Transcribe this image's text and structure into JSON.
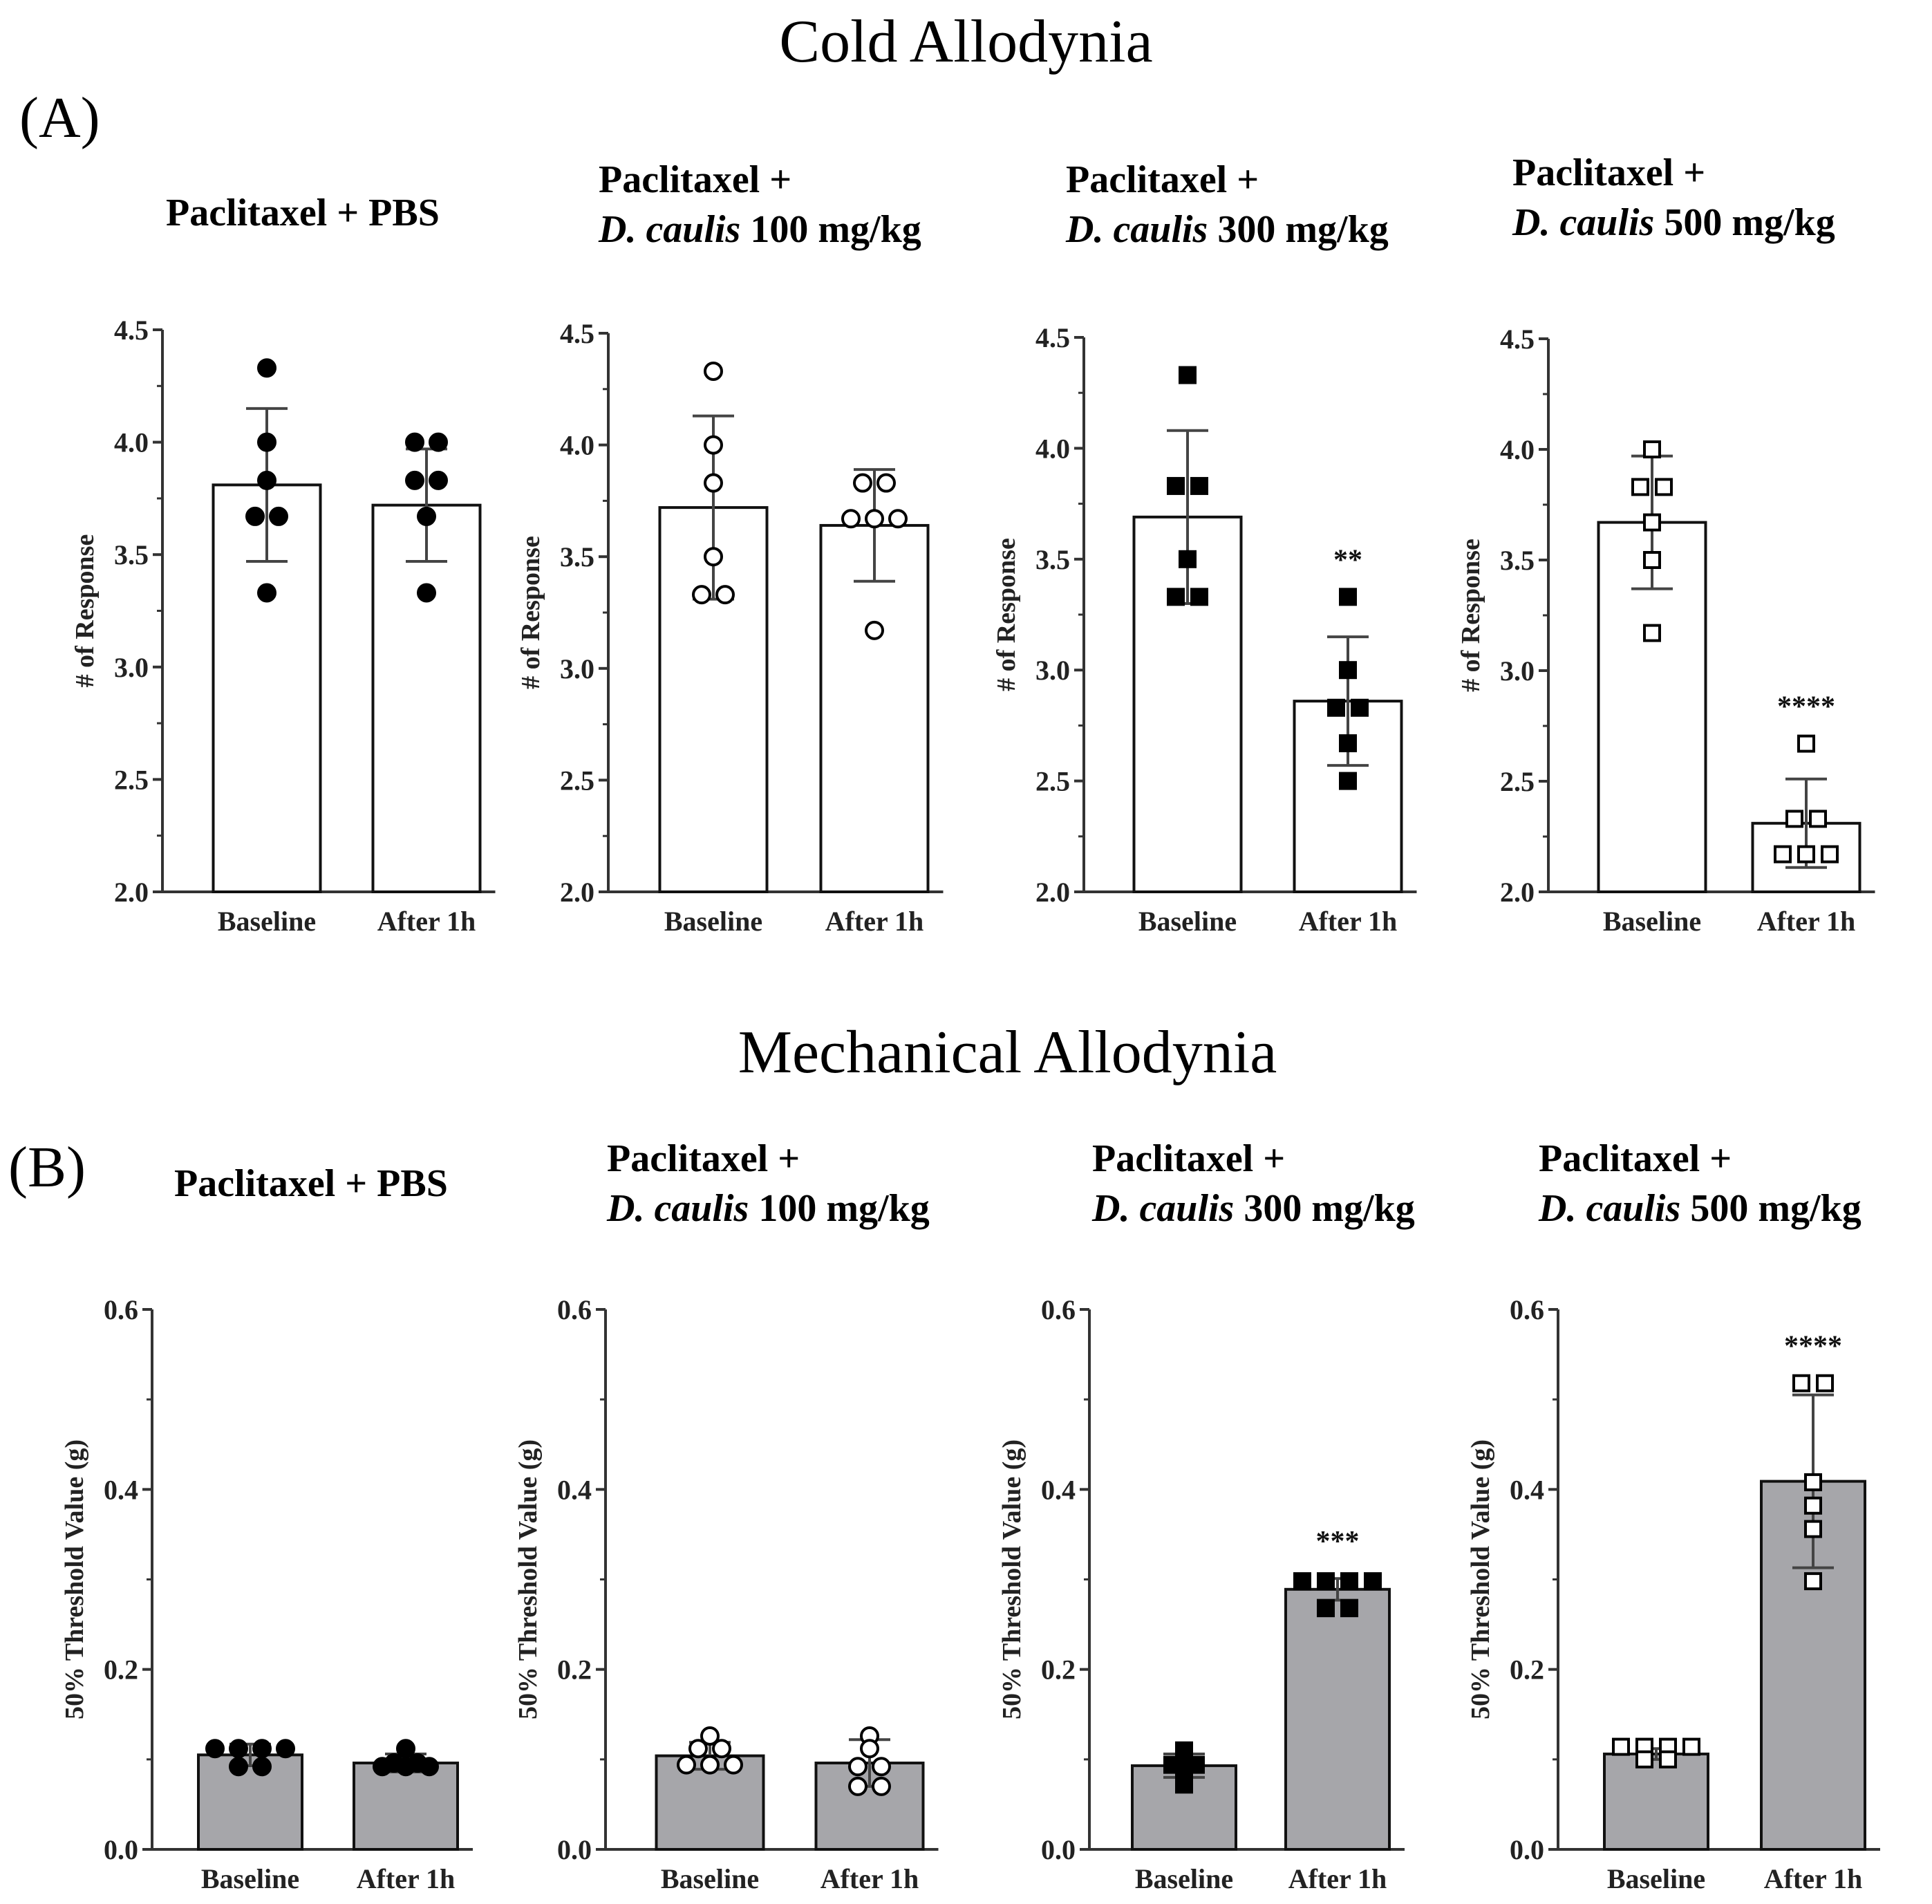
{
  "figure": {
    "title_a": "Cold Allodynia",
    "title_b": "Mechanical Allodynia",
    "panel_a_label": "(A)",
    "panel_b_label": "(B)"
  },
  "chart_data": [
    {
      "type": "bar",
      "section": "A",
      "title_line1": "Paclitaxel + PBS",
      "title_italic": "",
      "title_rest": "",
      "categories": [
        "Baseline",
        "After 1h"
      ],
      "values": [
        3.81,
        3.72
      ],
      "errors": [
        0.34,
        0.25
      ],
      "points": [
        [
          4.33,
          4.0,
          3.83,
          3.67,
          3.67,
          3.33
        ],
        [
          4.0,
          4.0,
          3.83,
          3.83,
          3.67,
          3.33
        ]
      ],
      "ylabel": "# of Response",
      "ylim": [
        2.0,
        4.5
      ],
      "yticks": [
        "2.0",
        "2.5",
        "3.0",
        "3.5",
        "4.0",
        "4.5"
      ],
      "significance": [
        "",
        ""
      ],
      "marker": "circle",
      "marker_fill": "#000000",
      "bar_fill": "#ffffff"
    },
    {
      "type": "bar",
      "section": "A",
      "title_line1": "Paclitaxel +",
      "title_italic": "D. caulis",
      "title_rest": " 100 mg/kg",
      "categories": [
        "Baseline",
        "After 1h"
      ],
      "values": [
        3.72,
        3.64
      ],
      "errors": [
        0.41,
        0.25
      ],
      "points": [
        [
          4.33,
          4.0,
          3.83,
          3.5,
          3.33,
          3.33
        ],
        [
          3.83,
          3.83,
          3.67,
          3.67,
          3.67,
          3.17
        ]
      ],
      "ylabel": "# of Response",
      "ylim": [
        2.0,
        4.5
      ],
      "yticks": [
        "2.0",
        "2.5",
        "3.0",
        "3.5",
        "4.0",
        "4.5"
      ],
      "significance": [
        "",
        ""
      ],
      "marker": "circle",
      "marker_fill": "#ffffff",
      "bar_fill": "#ffffff"
    },
    {
      "type": "bar",
      "section": "A",
      "title_line1": "Paclitaxel +",
      "title_italic": "D. caulis",
      "title_rest": " 300 mg/kg",
      "categories": [
        "Baseline",
        "After 1h"
      ],
      "values": [
        3.69,
        2.86
      ],
      "errors": [
        0.39,
        0.29
      ],
      "points": [
        [
          4.33,
          3.83,
          3.83,
          3.5,
          3.33,
          3.33
        ],
        [
          3.33,
          3.0,
          2.83,
          2.83,
          2.67,
          2.5
        ]
      ],
      "ylabel": "# of Response",
      "ylim": [
        2.0,
        4.5
      ],
      "yticks": [
        "2.0",
        "2.5",
        "3.0",
        "3.5",
        "4.0",
        "4.5"
      ],
      "significance": [
        "",
        "**"
      ],
      "marker": "square",
      "marker_fill": "#000000",
      "bar_fill": "#ffffff"
    },
    {
      "type": "bar",
      "section": "A",
      "title_line1": "Paclitaxel +",
      "title_italic": "D. caulis",
      "title_rest": " 500 mg/kg",
      "categories": [
        "Baseline",
        "After 1h"
      ],
      "values": [
        3.67,
        2.31
      ],
      "errors": [
        0.3,
        0.2
      ],
      "points": [
        [
          4.0,
          3.83,
          3.83,
          3.67,
          3.5,
          3.17
        ],
        [
          2.67,
          2.33,
          2.33,
          2.17,
          2.17,
          2.17
        ]
      ],
      "ylabel": "# of Response",
      "ylim": [
        2.0,
        4.5
      ],
      "yticks": [
        "2.0",
        "2.5",
        "3.0",
        "3.5",
        "4.0",
        "4.5"
      ],
      "significance": [
        "",
        "****"
      ],
      "marker": "square",
      "marker_fill": "#ffffff",
      "bar_fill": "#ffffff"
    },
    {
      "type": "bar",
      "section": "B",
      "title_line1": "Paclitaxel + PBS",
      "title_italic": "",
      "title_rest": "",
      "categories": [
        "Baseline",
        "After 1h"
      ],
      "values": [
        0.105,
        0.096
      ],
      "errors": [
        0.012,
        0.01
      ],
      "points": [
        [
          0.112,
          0.112,
          0.112,
          0.112,
          0.092,
          0.092
        ],
        [
          0.112,
          0.096,
          0.096,
          0.092,
          0.092,
          0.092
        ]
      ],
      "ylabel": "50% Threshold Value (g)",
      "ylim": [
        0.0,
        0.6
      ],
      "yticks": [
        "0.0",
        "0.2",
        "0.4",
        "0.6"
      ],
      "significance": [
        "",
        ""
      ],
      "marker": "circle",
      "marker_fill": "#000000",
      "bar_fill": "#a6a6aa"
    },
    {
      "type": "bar",
      "section": "B",
      "title_line1": "Paclitaxel +",
      "title_italic": "D. caulis",
      "title_rest": " 100 mg/kg",
      "categories": [
        "Baseline",
        "After 1h"
      ],
      "values": [
        0.104,
        0.096
      ],
      "errors": [
        0.015,
        0.026
      ],
      "points": [
        [
          0.126,
          0.112,
          0.112,
          0.094,
          0.094,
          0.094
        ],
        [
          0.126,
          0.112,
          0.092,
          0.092,
          0.07,
          0.07
        ]
      ],
      "ylabel": "50% Threshold Value (g)",
      "ylim": [
        0.0,
        0.6
      ],
      "yticks": [
        "0.0",
        "0.2",
        "0.4",
        "0.6"
      ],
      "significance": [
        "",
        ""
      ],
      "marker": "circle",
      "marker_fill": "#ffffff",
      "bar_fill": "#a6a6aa"
    },
    {
      "type": "bar",
      "section": "B",
      "title_line1": "Paclitaxel +",
      "title_italic": "D. caulis",
      "title_rest": " 300 mg/kg",
      "categories": [
        "Baseline",
        "After 1h"
      ],
      "values": [
        0.093,
        0.289
      ],
      "errors": [
        0.013,
        0.012
      ],
      "points": [
        [
          0.11,
          0.096,
          0.094,
          0.094,
          0.088,
          0.072
        ],
        [
          0.298,
          0.298,
          0.298,
          0.298,
          0.268,
          0.268
        ]
      ],
      "ylabel": "50% Threshold Value (g)",
      "ylim": [
        0.0,
        0.6
      ],
      "yticks": [
        "0.0",
        "0.2",
        "0.4",
        "0.6"
      ],
      "significance": [
        "",
        "***"
      ],
      "marker": "square",
      "marker_fill": "#000000",
      "bar_fill": "#a6a6aa"
    },
    {
      "type": "bar",
      "section": "B",
      "title_line1": "Paclitaxel +",
      "title_italic": "D. caulis",
      "title_rest": " 500 mg/kg",
      "categories": [
        "Baseline",
        "After 1h"
      ],
      "values": [
        0.106,
        0.409
      ],
      "errors": [
        0.006,
        0.096
      ],
      "points": [
        [
          0.114,
          0.114,
          0.114,
          0.114,
          0.1,
          0.1
        ],
        [
          0.518,
          0.518,
          0.408,
          0.382,
          0.356,
          0.298
        ]
      ],
      "ylabel": "50% Threshold Value (g)",
      "ylim": [
        0.0,
        0.6
      ],
      "yticks": [
        "0.0",
        "0.2",
        "0.4",
        "0.6"
      ],
      "significance": [
        "",
        "****"
      ],
      "marker": "square",
      "marker_fill": "#ffffff",
      "bar_fill": "#a6a6aa"
    }
  ]
}
